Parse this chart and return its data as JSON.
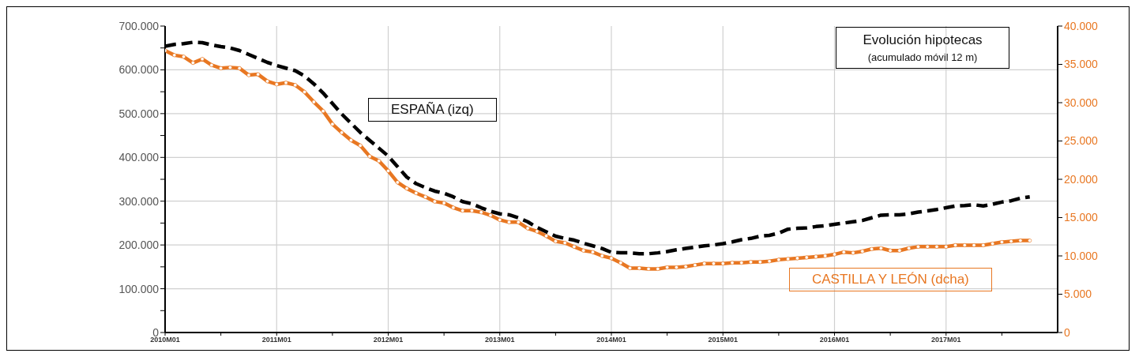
{
  "chart_data": {
    "type": "line",
    "title": "Evolución hipotecas",
    "subtitle": "(acumulado móvil 12 m)",
    "categories": [
      "2010M01",
      null,
      null,
      null,
      null,
      null,
      null,
      null,
      null,
      null,
      null,
      null,
      "2011M01",
      null,
      null,
      null,
      null,
      null,
      null,
      null,
      null,
      null,
      null,
      null,
      "2012M01",
      null,
      null,
      null,
      null,
      null,
      null,
      null,
      null,
      null,
      null,
      null,
      "2013M01",
      null,
      null,
      null,
      null,
      null,
      null,
      null,
      null,
      null,
      null,
      null,
      "2014M01",
      null,
      null,
      null,
      null,
      null,
      null,
      null,
      null,
      null,
      null,
      null,
      "2015M01",
      null,
      null,
      null,
      null,
      null,
      null,
      null,
      null,
      null,
      null,
      null,
      "2016M01",
      null,
      null,
      null,
      null,
      null,
      null,
      null,
      null,
      null,
      null,
      null,
      "2017M01",
      null,
      null,
      null,
      null,
      null,
      null,
      null,
      null,
      null
    ],
    "series": [
      {
        "name": "ESPAÑA (izq)",
        "color": "#000000",
        "axis": "y",
        "line_style": "dashed",
        "marker": "none",
        "values": [
          654000,
          658000,
          660000,
          663000,
          662000,
          657000,
          653000,
          650000,
          644000,
          635000,
          626000,
          617000,
          610000,
          604000,
          598000,
          586000,
          568000,
          547000,
          523000,
          499000,
          478000,
          457000,
          439000,
          421000,
          403000,
          379000,
          355000,
          340000,
          331000,
          323000,
          318000,
          310000,
          299000,
          294000,
          285000,
          277000,
          271000,
          269000,
          262000,
          253000,
          240000,
          230000,
          220000,
          215000,
          211000,
          204000,
          198000,
          192000,
          183000,
          182000,
          182000,
          180000,
          180000,
          182000,
          185000,
          189000,
          192000,
          195000,
          198000,
          200000,
          203000,
          207000,
          212000,
          215000,
          220000,
          222000,
          227000,
          236000,
          238000,
          239000,
          242000,
          244000,
          247000,
          250000,
          253000,
          256000,
          262000,
          268000,
          269000,
          269000,
          271000,
          275000,
          278000,
          281000,
          285000,
          289000,
          290000,
          292000,
          289000,
          293000,
          298000,
          301000,
          307000,
          310000
        ]
      },
      {
        "name": "CASTILLA Y LEÓN (dcha)",
        "color": "#e87722",
        "axis": "y2",
        "line_style": "solid",
        "marker": "circle",
        "values": [
          36800,
          36200,
          36000,
          35200,
          35700,
          34900,
          34500,
          34600,
          34500,
          33600,
          33700,
          32800,
          32400,
          32600,
          32300,
          31400,
          30100,
          28900,
          27200,
          26100,
          25100,
          24400,
          23000,
          22400,
          21100,
          19600,
          18800,
          18200,
          17700,
          17100,
          16900,
          16300,
          15900,
          15900,
          15700,
          15300,
          14700,
          14400,
          14400,
          13600,
          13200,
          12600,
          11900,
          11700,
          11200,
          10700,
          10500,
          10000,
          9700,
          9100,
          8400,
          8400,
          8300,
          8300,
          8500,
          8500,
          8600,
          8800,
          9000,
          9000,
          9000,
          9100,
          9100,
          9200,
          9200,
          9300,
          9500,
          9600,
          9700,
          9800,
          9900,
          10000,
          10200,
          10500,
          10400,
          10600,
          10900,
          11000,
          10700,
          10700,
          11000,
          11200,
          11200,
          11200,
          11200,
          11400,
          11400,
          11400,
          11400,
          11600,
          11800,
          11900,
          12000,
          12000
        ]
      }
    ],
    "ylim": [
      0,
      700000
    ],
    "yticks": [
      {
        "value": 0,
        "label": "0"
      },
      {
        "value": 50000,
        "label": null
      },
      {
        "value": 100000,
        "label": "100.000"
      },
      {
        "value": 150000,
        "label": null
      },
      {
        "value": 200000,
        "label": "200.000"
      },
      {
        "value": 250000,
        "label": null
      },
      {
        "value": 300000,
        "label": "300.000"
      },
      {
        "value": 350000,
        "label": null
      },
      {
        "value": 400000,
        "label": "400.000"
      },
      {
        "value": 450000,
        "label": null
      },
      {
        "value": 500000,
        "label": "500.000"
      },
      {
        "value": 550000,
        "label": null
      },
      {
        "value": 600000,
        "label": "600.000"
      },
      {
        "value": 650000,
        "label": null
      },
      {
        "value": 700000,
        "label": "700.000"
      }
    ],
    "y2lim": [
      0,
      40000
    ],
    "y2ticks": [
      {
        "value": 0,
        "label": "0"
      },
      {
        "value": 5000,
        "label": "5.000"
      },
      {
        "value": 10000,
        "label": "10.000"
      },
      {
        "value": 15000,
        "label": "15.000"
      },
      {
        "value": 20000,
        "label": "20.000"
      },
      {
        "value": 25000,
        "label": "25.000"
      },
      {
        "value": 30000,
        "label": "30.000"
      },
      {
        "value": 35000,
        "label": "35.000"
      },
      {
        "value": 40000,
        "label": "40.000"
      }
    ],
    "grid": true,
    "legend": false
  }
}
